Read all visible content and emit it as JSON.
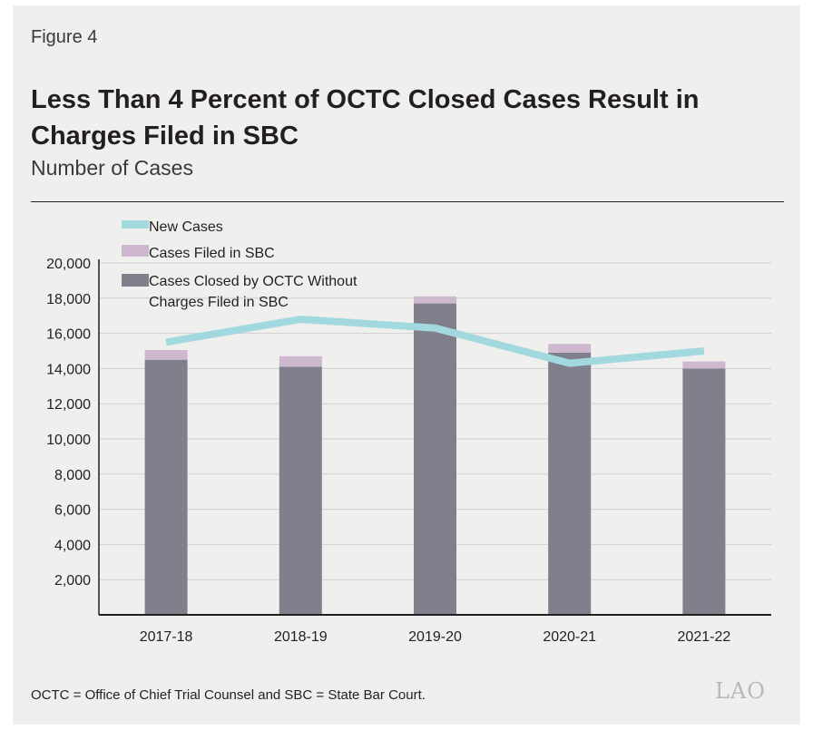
{
  "figure_label": "Figure 4",
  "title": "Less Than 4 Percent of OCTC Closed Cases Result in Charges Filed in SBC",
  "subtitle": "Number of Cases",
  "footnote": "OCTC = Office of Chief Trial Counsel and SBC = State Bar Court.",
  "logo_text": "LAO",
  "colors": {
    "closed": "#807f8c",
    "filed": "#cdb8d0",
    "line": "#a2d9de",
    "grid": "#cfcfcf",
    "axis": "#231f20"
  },
  "chart_data": {
    "type": "bar",
    "stacked": true,
    "categories": [
      "2017-18",
      "2018-19",
      "2019-20",
      "2020-21",
      "2021-22"
    ],
    "series": [
      {
        "name": "Cases Closed by OCTC Without Charges Filed in SBC",
        "kind": "bar",
        "values": [
          14500,
          14100,
          17700,
          14900,
          14000
        ]
      },
      {
        "name": "Cases Filed in SBC",
        "kind": "bar",
        "values": [
          550,
          600,
          400,
          500,
          400
        ]
      },
      {
        "name": "New Cases",
        "kind": "line",
        "values": [
          15500,
          16800,
          16300,
          14300,
          15000
        ]
      }
    ],
    "legend": [
      "New Cases",
      "Cases Filed in SBC",
      "Cases Closed by OCTC Without Charges Filed in SBC"
    ],
    "legend_placement": "top-left",
    "y_ticks": [
      "2,000",
      "4,000",
      "6,000",
      "8,000",
      "10,000",
      "12,000",
      "14,000",
      "16,000",
      "18,000",
      "20,000"
    ],
    "ylim": [
      0,
      20000
    ],
    "grid": true,
    "xlabel": "",
    "ylabel": ""
  }
}
